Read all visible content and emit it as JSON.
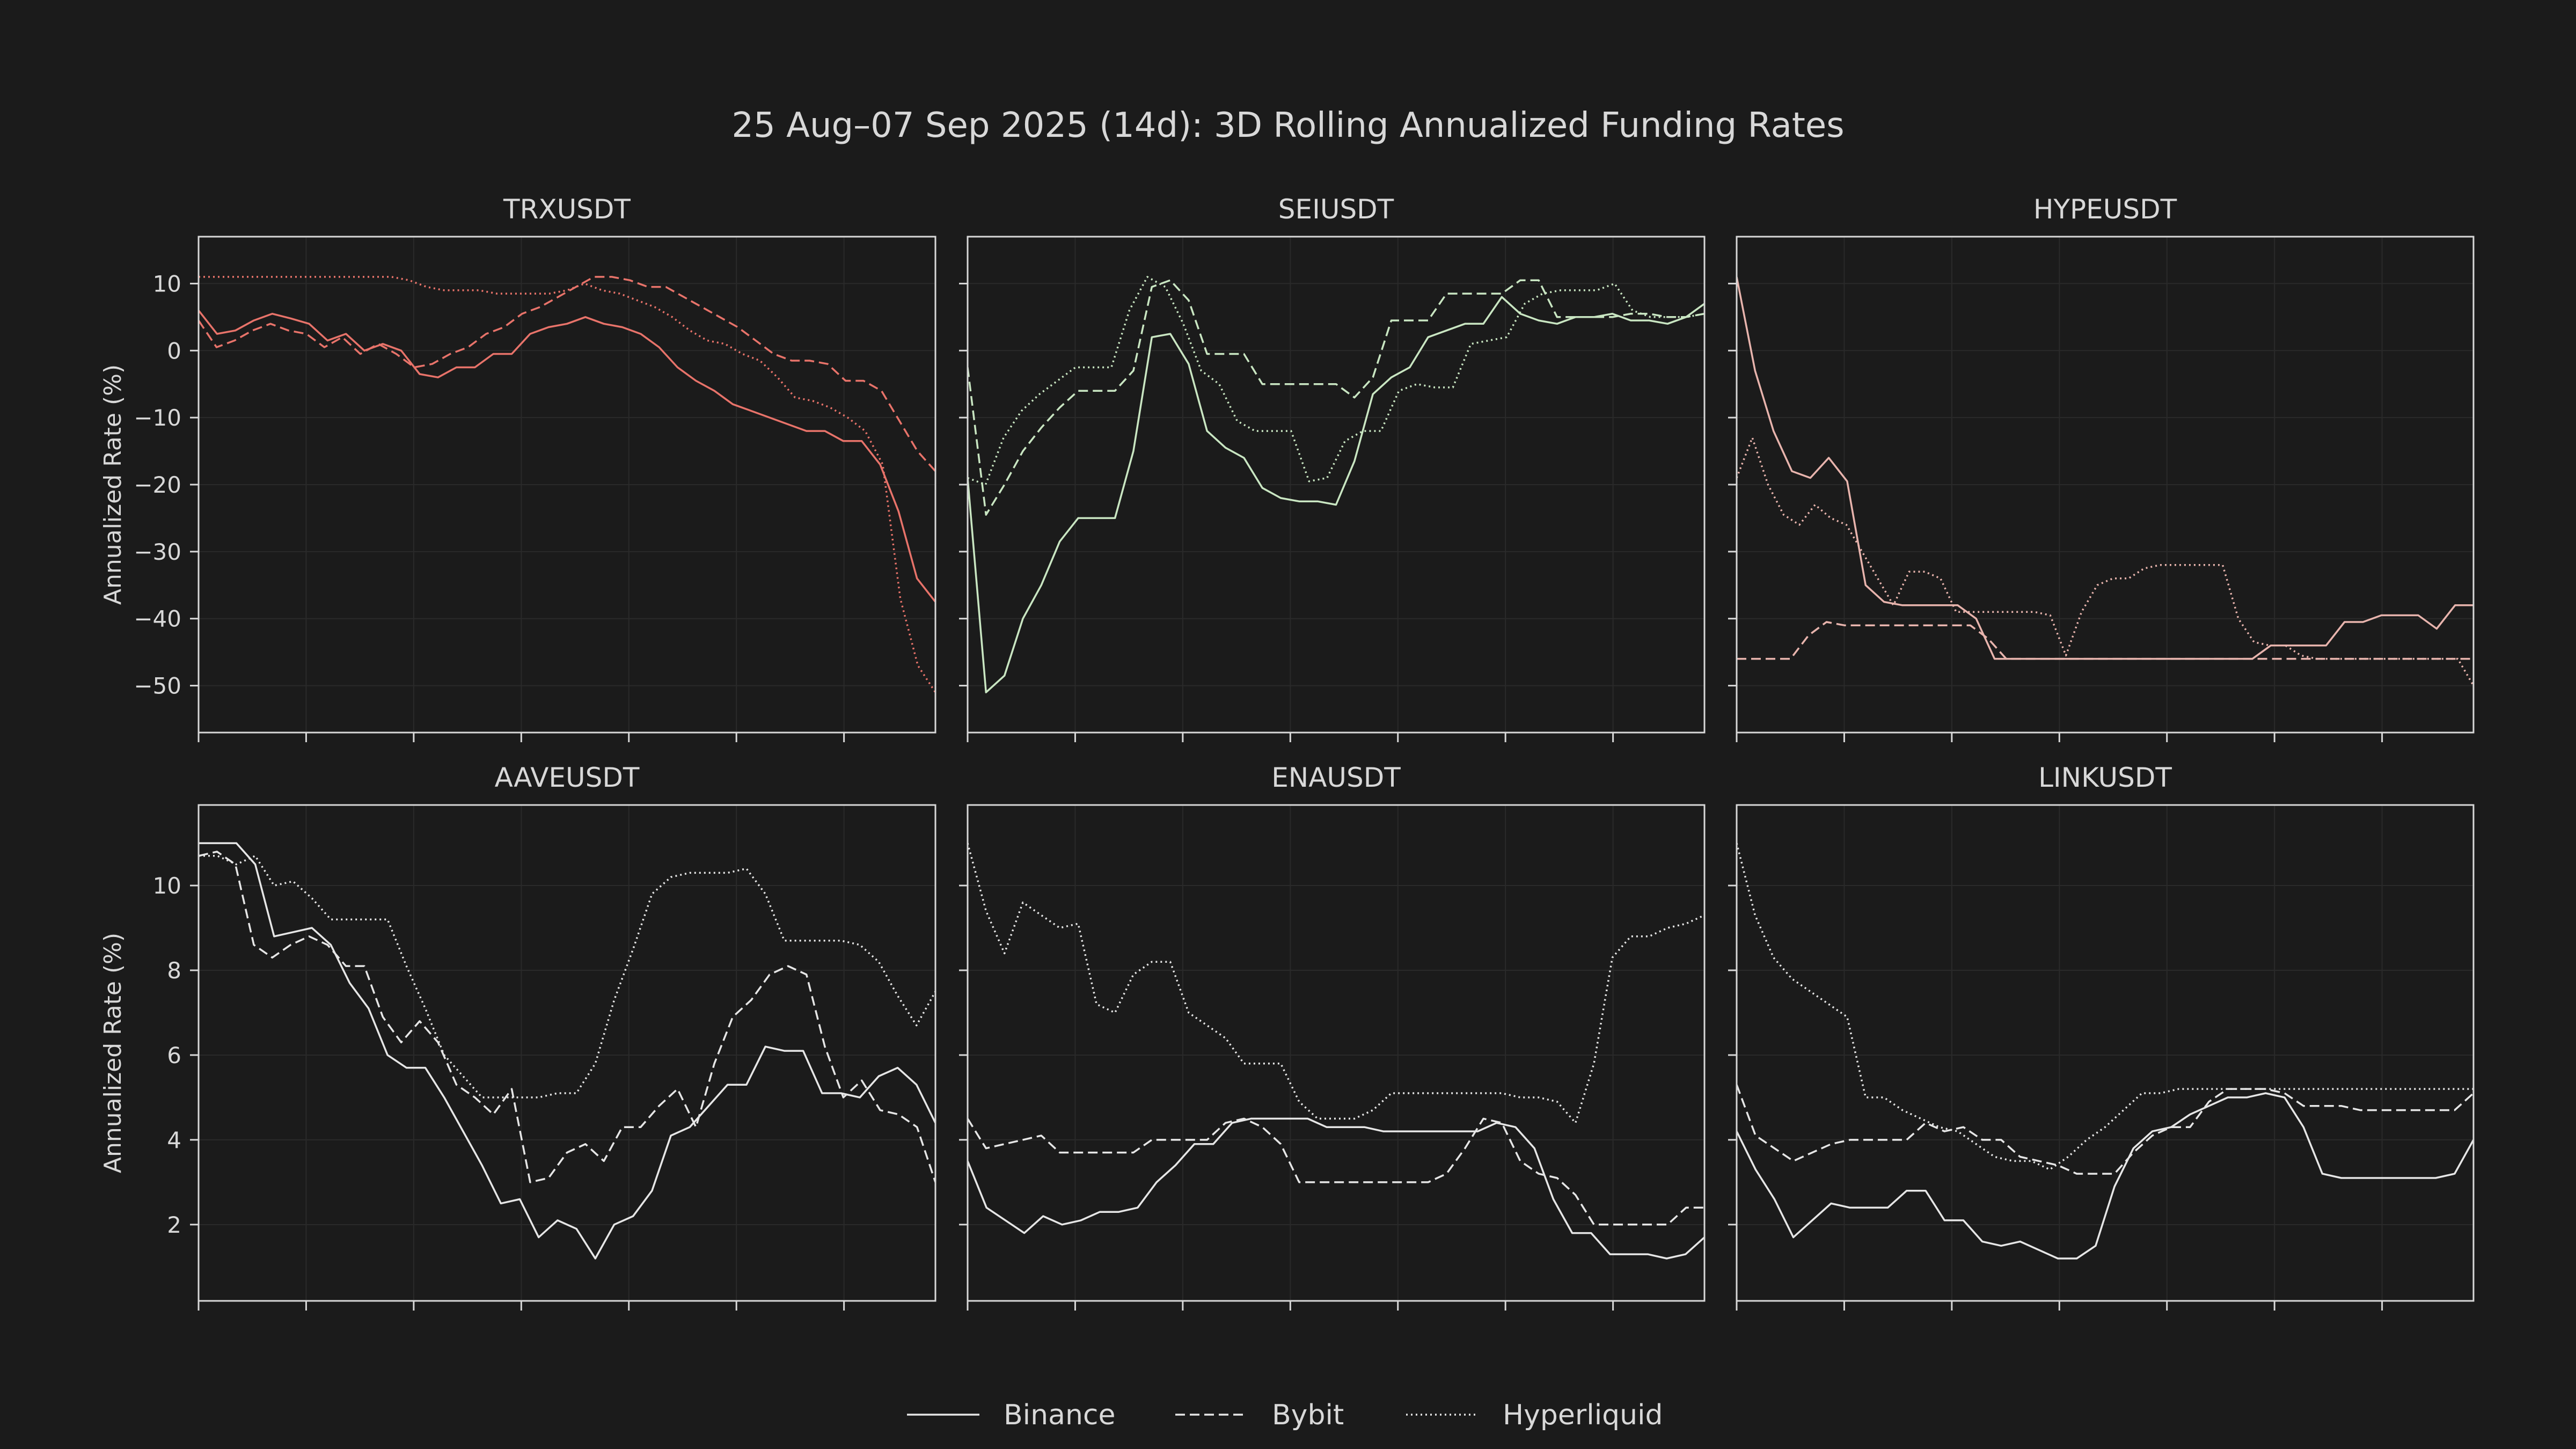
{
  "title": "25 Aug–07 Sep 2025 (14d): 3D Rolling Annualized Funding Rates",
  "colors": {
    "background": "#1b1b1b",
    "axis": "#d8d8d8",
    "grid": "#2a2a2a",
    "text": "#d8d8d8",
    "trx_series": "#e8736a",
    "sei_series": "#c9e6c2",
    "hype_series": "#e8b4ad",
    "default_series": "#e6e6e6"
  },
  "legend": {
    "items": [
      {
        "label": "Binance",
        "dash": "solid"
      },
      {
        "label": "Bybit",
        "dash": "dashed"
      },
      {
        "label": "Hyperliquid",
        "dash": "dotted"
      }
    ],
    "placement": "bottom-center"
  },
  "chart_data": [
    {
      "type": "line",
      "title": "TRXUSDT",
      "ylabel": "Annualized Rate (%)",
      "ylim": [
        -57,
        17
      ],
      "yticks": [
        10,
        0,
        -10,
        -20,
        -30,
        -40,
        -50
      ],
      "ytick_labels": [
        "10",
        "0",
        "−10",
        "−20",
        "−30",
        "−40",
        "−50"
      ],
      "xlim": [
        0,
        54
      ],
      "color_key": "trx_series",
      "series": [
        {
          "name": "Binance",
          "values": [
            6,
            2.5,
            3,
            4.5,
            5.5,
            4.8,
            4,
            1.5,
            2.5,
            0,
            1,
            0,
            -3.5,
            -4,
            -2.5,
            -2.5,
            -0.5,
            -0.5,
            2.5,
            3.5,
            4,
            5,
            4,
            3.5,
            2.5,
            0.5,
            -2.5,
            -4.5,
            -6,
            -8,
            -9,
            -10,
            -11,
            -12,
            -12,
            -13.5,
            -13.5,
            -17,
            -24,
            -34,
            -37.5
          ]
        },
        {
          "name": "Bybit",
          "values": [
            4.5,
            0.5,
            1.5,
            3,
            4,
            3,
            2.5,
            0.5,
            2,
            -0.5,
            1,
            -0.5,
            -2.5,
            -2,
            -0.5,
            0.5,
            2.5,
            3.5,
            5.5,
            6.5,
            8,
            9.5,
            11,
            11,
            10.5,
            9.5,
            9.5,
            8,
            6.5,
            5,
            3.5,
            1.5,
            -0.5,
            -1.5,
            -1.5,
            -2,
            -4.5,
            -4.5,
            -6,
            -10.5,
            -15,
            -18
          ]
        },
        {
          "name": "Hyperliquid",
          "values": [
            11,
            11,
            11,
            11,
            11,
            11,
            11,
            11,
            11,
            11,
            11,
            11,
            10.5,
            9.5,
            9,
            9,
            9,
            8.5,
            8.5,
            8.5,
            8.5,
            9,
            10,
            9,
            8.5,
            7.5,
            6.5,
            5,
            3,
            1.5,
            1,
            -0.5,
            -1.5,
            -4,
            -7,
            -7.5,
            -8.5,
            -10,
            -12,
            -17,
            -37,
            -47,
            -51
          ]
        }
      ]
    },
    {
      "type": "line",
      "title": "SEIUSDT",
      "ylabel": "",
      "ylim": [
        -57,
        17
      ],
      "yticks": [
        10,
        0,
        -10,
        -20,
        -30,
        -40,
        -50
      ],
      "ytick_labels": [
        "",
        "",
        "",
        "",
        "",
        "",
        ""
      ],
      "xlim": [
        0,
        54
      ],
      "color_key": "sei_series",
      "series": [
        {
          "name": "Binance",
          "values": [
            -19,
            -51,
            -48.5,
            -40,
            -35,
            -28.5,
            -25,
            -25,
            -25,
            -15,
            2,
            2.5,
            -2,
            -12,
            -14.5,
            -16,
            -20.5,
            -22,
            -22.5,
            -22.5,
            -23,
            -16.5,
            -6.5,
            -4,
            -2.5,
            2,
            3,
            4,
            4,
            8,
            5.5,
            4.5,
            4,
            5,
            5,
            5.5,
            4.5,
            4.5,
            4,
            5,
            7
          ]
        },
        {
          "name": "Bybit",
          "values": [
            -2.5,
            -24.5,
            -20,
            -15,
            -11.5,
            -8.5,
            -6,
            -6,
            -6,
            -3,
            9.5,
            10.5,
            7.5,
            -0.5,
            -0.5,
            -0.5,
            -5,
            -5,
            -5,
            -5,
            -5,
            -7,
            -4,
            4.5,
            4.5,
            4.5,
            8.5,
            8.5,
            8.5,
            8.5,
            10.5,
            10.5,
            5,
            5,
            5,
            5,
            5.5,
            5.5,
            5,
            5,
            5.5
          ]
        },
        {
          "name": "Hyperliquid",
          "values": [
            -19,
            -20,
            -13,
            -9,
            -6.5,
            -4.5,
            -2.5,
            -2.5,
            -2.5,
            6,
            11,
            9.5,
            4,
            -3,
            -5,
            -10.5,
            -12,
            -12,
            -12,
            -19.5,
            -19,
            -13.5,
            -12,
            -12,
            -6,
            -5,
            -5.5,
            -5.5,
            1,
            1.5,
            2,
            7,
            8.5,
            9,
            9,
            9,
            10,
            6,
            5,
            5,
            5,
            5.5
          ]
        }
      ]
    },
    {
      "type": "line",
      "title": "HYPEUSDT",
      "ylabel": "",
      "ylim": [
        -57,
        17
      ],
      "yticks": [
        10,
        0,
        -10,
        -20,
        -30,
        -40,
        -50
      ],
      "ytick_labels": [
        "",
        "",
        "",
        "",
        "",
        "",
        ""
      ],
      "xlim": [
        0,
        54
      ],
      "color_key": "hype_series",
      "series": [
        {
          "name": "Binance",
          "values": [
            11,
            -3,
            -12,
            -18,
            -19,
            -16,
            -19.5,
            -35,
            -37.5,
            -38,
            -38,
            -38,
            -38,
            -40,
            -46,
            -46,
            -46,
            -46,
            -46,
            -46,
            -46,
            -46,
            -46,
            -46,
            -46,
            -46,
            -46,
            -46,
            -46,
            -44,
            -44,
            -44,
            -44,
            -40.5,
            -40.5,
            -39.5,
            -39.5,
            -39.5,
            -41.5,
            -38,
            -38
          ]
        },
        {
          "name": "Bybit",
          "values": [
            -46,
            -46,
            -46,
            -46,
            -42.5,
            -40.5,
            -41,
            -41,
            -41,
            -41,
            -41,
            -41,
            -41,
            -41,
            -43,
            -46,
            -46,
            -46,
            -46,
            -46,
            -46,
            -46,
            -46,
            -46,
            -46,
            -46,
            -46,
            -46,
            -46,
            -46,
            -46,
            -46,
            -46,
            -46,
            -46,
            -46,
            -46,
            -46,
            -46,
            -46,
            -46,
            -46
          ]
        },
        {
          "name": "Hyperliquid",
          "values": [
            -19,
            -13,
            -20,
            -24.5,
            -26,
            -23,
            -25,
            -26,
            -30,
            -34,
            -38,
            -33,
            -33,
            -34,
            -39,
            -39,
            -39,
            -39,
            -39,
            -39,
            -39.5,
            -45.5,
            -39,
            -35,
            -34,
            -34,
            -32.5,
            -32,
            -32,
            -32,
            -32,
            -32,
            -40,
            -43.5,
            -44,
            -44,
            -45.5,
            -46,
            -46,
            -46,
            -46,
            -46,
            -46,
            -46,
            -46,
            -46,
            -46,
            -50
          ]
        }
      ]
    },
    {
      "type": "line",
      "title": "AAVEUSDT",
      "ylabel": "Annualized Rate (%)",
      "ylim": [
        0.2,
        11.9
      ],
      "yticks": [
        10,
        8,
        6,
        4,
        2
      ],
      "ytick_labels": [
        "10",
        "8",
        "6",
        "4",
        "2"
      ],
      "xlim": [
        0,
        54
      ],
      "color_key": "default_series",
      "series": [
        {
          "name": "Binance",
          "values": [
            11,
            11,
            11,
            10.5,
            8.8,
            8.9,
            9,
            8.6,
            7.7,
            7.1,
            6,
            5.7,
            5.7,
            5,
            4.2,
            3.4,
            2.5,
            2.6,
            1.7,
            2.1,
            1.9,
            1.2,
            2,
            2.2,
            2.8,
            4.1,
            4.3,
            4.8,
            5.3,
            5.3,
            6.2,
            6.1,
            6.1,
            5.1,
            5.1,
            5,
            5.5,
            5.7,
            5.3,
            4.4
          ]
        },
        {
          "name": "Bybit",
          "values": [
            10.7,
            10.8,
            10.5,
            8.6,
            8.3,
            8.6,
            8.8,
            8.6,
            8.1,
            8.1,
            6.9,
            6.3,
            6.8,
            6.3,
            5.3,
            5,
            4.6,
            5.2,
            3,
            3.1,
            3.7,
            3.9,
            3.5,
            4.3,
            4.3,
            4.8,
            5.2,
            4.3,
            5.8,
            6.9,
            7.3,
            7.9,
            8.1,
            7.9,
            6.2,
            5,
            5.4,
            4.7,
            4.6,
            4.3,
            3
          ]
        },
        {
          "name": "Hyperliquid",
          "values": [
            10.7,
            10.7,
            10.5,
            10.7,
            10,
            10.1,
            9.7,
            9.2,
            9.2,
            9.2,
            9.2,
            8.1,
            7.1,
            6,
            5.5,
            5,
            5,
            5,
            5,
            5.1,
            5.1,
            5.8,
            7.3,
            8.5,
            9.8,
            10.2,
            10.3,
            10.3,
            10.3,
            10.4,
            9.8,
            8.7,
            8.7,
            8.7,
            8.7,
            8.6,
            8.2,
            7.4,
            6.7,
            7.5
          ]
        }
      ]
    },
    {
      "type": "line",
      "title": "ENAUSDT",
      "ylabel": "",
      "ylim": [
        0.2,
        11.9
      ],
      "yticks": [
        10,
        8,
        6,
        4,
        2
      ],
      "ytick_labels": [
        "",
        "",
        "",
        "",
        ""
      ],
      "xlim": [
        0,
        54
      ],
      "color_key": "default_series",
      "series": [
        {
          "name": "Binance",
          "values": [
            3.5,
            2.4,
            2.1,
            1.8,
            2.2,
            2,
            2.1,
            2.3,
            2.3,
            2.4,
            3,
            3.4,
            3.9,
            3.9,
            4.4,
            4.5,
            4.5,
            4.5,
            4.5,
            4.3,
            4.3,
            4.3,
            4.2,
            4.2,
            4.2,
            4.2,
            4.2,
            4.2,
            4.4,
            4.3,
            3.8,
            2.6,
            1.8,
            1.8,
            1.3,
            1.3,
            1.3,
            1.2,
            1.3,
            1.7
          ]
        },
        {
          "name": "Bybit",
          "values": [
            4.5,
            3.8,
            3.9,
            4,
            4.1,
            3.7,
            3.7,
            3.7,
            3.7,
            3.7,
            4,
            4,
            4,
            4,
            4.4,
            4.5,
            4.3,
            3.9,
            3,
            3,
            3,
            3,
            3,
            3,
            3,
            3,
            3.2,
            3.8,
            4.5,
            4.4,
            3.5,
            3.2,
            3.1,
            2.7,
            2,
            2,
            2,
            2,
            2,
            2.4,
            2.4
          ]
        },
        {
          "name": "Hyperliquid",
          "values": [
            11,
            9.4,
            8.4,
            9.6,
            9.3,
            9,
            9.1,
            7.2,
            7,
            7.9,
            8.2,
            8.2,
            7,
            6.7,
            6.4,
            5.8,
            5.8,
            5.8,
            4.9,
            4.5,
            4.5,
            4.5,
            4.7,
            5.1,
            5.1,
            5.1,
            5.1,
            5.1,
            5.1,
            5.1,
            5,
            5,
            4.9,
            4.4,
            5.8,
            8.3,
            8.8,
            8.8,
            9,
            9.1,
            9.3
          ]
        }
      ]
    },
    {
      "type": "line",
      "title": "LINKUSDT",
      "ylabel": "",
      "ylim": [
        0.2,
        11.9
      ],
      "yticks": [
        10,
        8,
        6,
        4,
        2
      ],
      "ytick_labels": [
        "",
        "",
        "",
        "",
        ""
      ],
      "xlim": [
        0,
        54
      ],
      "color_key": "default_series",
      "series": [
        {
          "name": "Binance",
          "values": [
            4.2,
            3.3,
            2.6,
            1.7,
            2.1,
            2.5,
            2.4,
            2.4,
            2.4,
            2.8,
            2.8,
            2.1,
            2.1,
            1.6,
            1.5,
            1.6,
            1.4,
            1.2,
            1.2,
            1.5,
            2.9,
            3.8,
            4.2,
            4.3,
            4.6,
            4.8,
            5,
            5,
            5.1,
            5,
            4.3,
            3.2,
            3.1,
            3.1,
            3.1,
            3.1,
            3.1,
            3.1,
            3.2,
            4
          ]
        },
        {
          "name": "Bybit",
          "values": [
            5.3,
            4.1,
            3.8,
            3.5,
            3.7,
            3.9,
            4,
            4,
            4,
            4,
            4.4,
            4.2,
            4.3,
            4,
            4,
            3.6,
            3.5,
            3.4,
            3.2,
            3.2,
            3.2,
            3.7,
            4.1,
            4.3,
            4.3,
            4.9,
            5.2,
            5.2,
            5.2,
            5.1,
            4.8,
            4.8,
            4.8,
            4.7,
            4.7,
            4.7,
            4.7,
            4.7,
            4.7,
            5.1
          ]
        },
        {
          "name": "Hyperliquid",
          "values": [
            11,
            9.3,
            8.3,
            7.8,
            7.5,
            7.2,
            6.9,
            5,
            5,
            4.7,
            4.5,
            4.3,
            4.2,
            3.9,
            3.6,
            3.5,
            3.5,
            3.3,
            3.6,
            4,
            4.3,
            4.7,
            5.1,
            5.1,
            5.2,
            5.2,
            5.2,
            5.2,
            5.2,
            5.2,
            5.2,
            5.2,
            5.2,
            5.2,
            5.2,
            5.2,
            5.2,
            5.2,
            5.2,
            5.2,
            5.2
          ]
        }
      ]
    }
  ]
}
